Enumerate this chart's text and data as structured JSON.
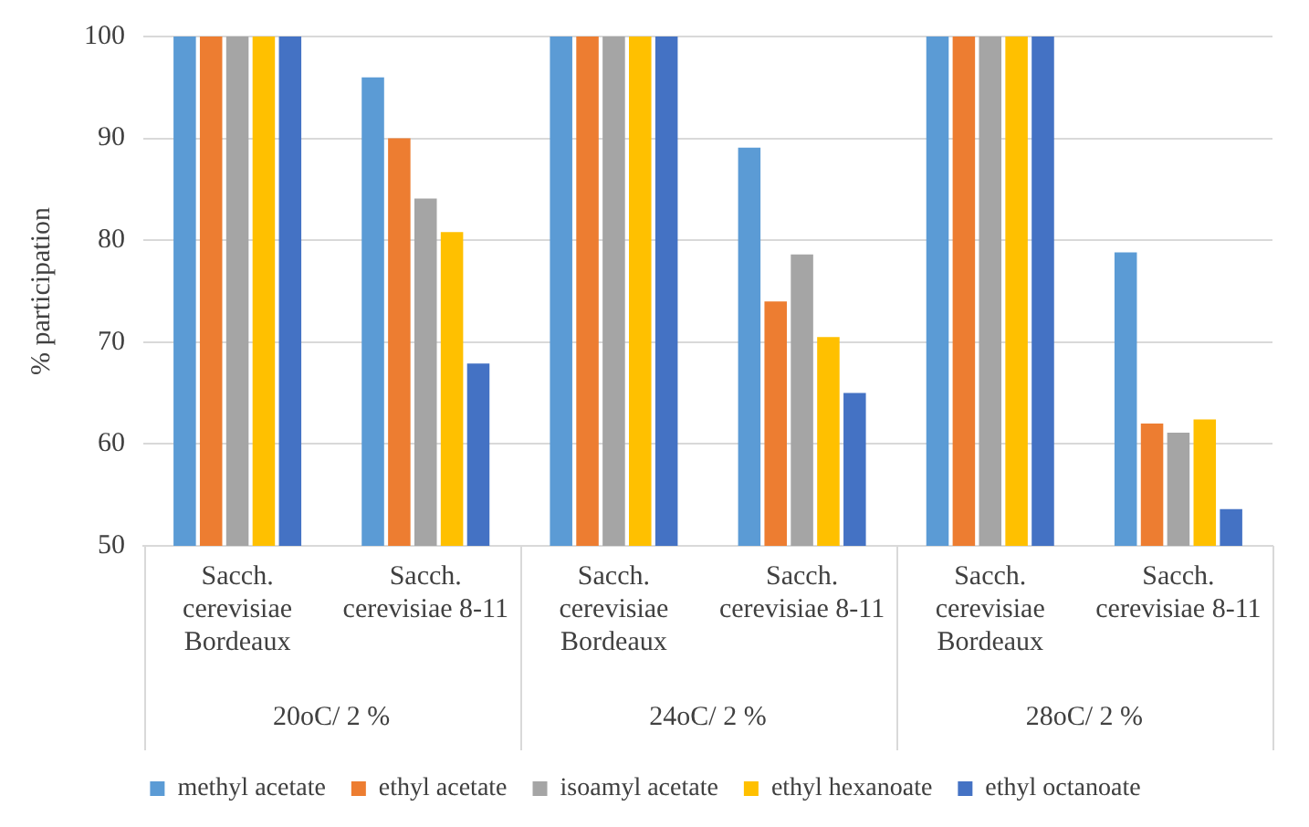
{
  "chart_data": {
    "type": "bar",
    "ylabel": "% participation",
    "categories": [
      "Sacch. cerevisiae Bordeaux",
      "Sacch. cerevisiae 8-11",
      "Sacch. cerevisiae Bordeaux",
      "Sacch. cerevisiae 8-11",
      "Sacch. cerevisiae Bordeaux",
      "Sacch. cerevisiae 8-11"
    ],
    "annotations": [
      "20oC/ 2 %",
      "24oC/ 2 %",
      "28oC/ 2 %"
    ],
    "series": [
      {
        "name": "methyl acetate",
        "color": "#5b9bd5",
        "values": [
          100,
          96,
          100,
          89.1,
          100,
          78.8
        ]
      },
      {
        "name": "ethyl acetate",
        "color": "#ed7d31",
        "values": [
          100,
          90,
          100,
          74,
          100,
          62
        ]
      },
      {
        "name": "isoamyl acetate",
        "color": "#a5a5a5",
        "values": [
          100,
          84.1,
          100,
          78.6,
          100,
          61.1
        ]
      },
      {
        "name": "ethyl hexanoate",
        "color": "#ffc000",
        "values": [
          100,
          80.8,
          100,
          70.5,
          100,
          62.4
        ]
      },
      {
        "name": "ethyl octanoate",
        "color": "#4472c4",
        "values": [
          100,
          67.9,
          100,
          65,
          100,
          53.6
        ]
      }
    ],
    "ylim": [
      50,
      100
    ],
    "yticks": [
      50,
      60,
      70,
      80,
      90,
      100
    ],
    "grid": "y",
    "legend": "bottom"
  }
}
